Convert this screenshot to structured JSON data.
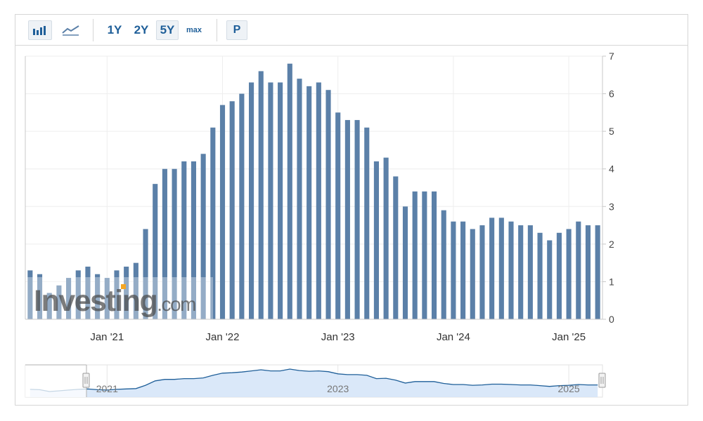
{
  "toolbar": {
    "bar_chart_icon": "bar-chart-icon",
    "line_chart_icon": "line-chart-icon",
    "ranges": [
      "1Y",
      "2Y",
      "5Y",
      "max"
    ],
    "active_range": "5Y",
    "p_label": "P"
  },
  "watermark": "Investing.com",
  "colors": {
    "bar": "#5b80a8",
    "navigator_line": "#1f5f99",
    "navigator_fill": "#d6e6f8",
    "active_button": "#eef2f6"
  },
  "chart_data": {
    "type": "bar",
    "title": "",
    "xlabel": "",
    "ylabel": "",
    "ylim": [
      0,
      7
    ],
    "y_ticks": [
      0,
      1,
      2,
      3,
      4,
      5,
      6,
      7
    ],
    "y_axis_position": "right",
    "x_tick_labels": [
      "Jan '21",
      "Jan '22",
      "Jan '23",
      "Jan '24",
      "Jan '25"
    ],
    "x_tick_indices": [
      8,
      20,
      32,
      44,
      56
    ],
    "grid": true,
    "categories": [
      "2020-05",
      "2020-06",
      "2020-07",
      "2020-08",
      "2020-09",
      "2020-10",
      "2020-11",
      "2020-12",
      "2021-01",
      "2021-02",
      "2021-03",
      "2021-04",
      "2021-05",
      "2021-06",
      "2021-07",
      "2021-08",
      "2021-09",
      "2021-10",
      "2021-11",
      "2021-12",
      "2022-01",
      "2022-02",
      "2022-03",
      "2022-04",
      "2022-05",
      "2022-06",
      "2022-07",
      "2022-08",
      "2022-09",
      "2022-10",
      "2022-11",
      "2022-12",
      "2023-01",
      "2023-02",
      "2023-03",
      "2023-04",
      "2023-05",
      "2023-06",
      "2023-07",
      "2023-08",
      "2023-09",
      "2023-10",
      "2023-11",
      "2023-12",
      "2024-01",
      "2024-02",
      "2024-03",
      "2024-04",
      "2024-05",
      "2024-06",
      "2024-07",
      "2024-08",
      "2024-09",
      "2024-10",
      "2024-11",
      "2024-12",
      "2025-01",
      "2025-02",
      "2025-03",
      "2025-04"
    ],
    "values": [
      1.3,
      1.2,
      0.7,
      0.9,
      1.1,
      1.3,
      1.4,
      1.2,
      1.1,
      1.3,
      1.4,
      1.5,
      2.4,
      3.6,
      4.0,
      4.0,
      4.2,
      4.2,
      4.4,
      5.1,
      5.7,
      5.8,
      6.0,
      6.3,
      6.6,
      6.3,
      6.3,
      6.8,
      6.4,
      6.2,
      6.3,
      6.1,
      5.5,
      5.3,
      5.3,
      5.1,
      4.2,
      4.3,
      3.8,
      3.0,
      3.4,
      3.4,
      3.4,
      2.9,
      2.6,
      2.6,
      2.4,
      2.5,
      2.7,
      2.7,
      2.6,
      2.5,
      2.5,
      2.3,
      2.1,
      2.3,
      2.4,
      2.6,
      2.5,
      2.5
    ],
    "navigator": {
      "year_labels": [
        "2021",
        "2023",
        "2025"
      ],
      "year_indices": [
        8,
        32,
        56
      ]
    }
  }
}
